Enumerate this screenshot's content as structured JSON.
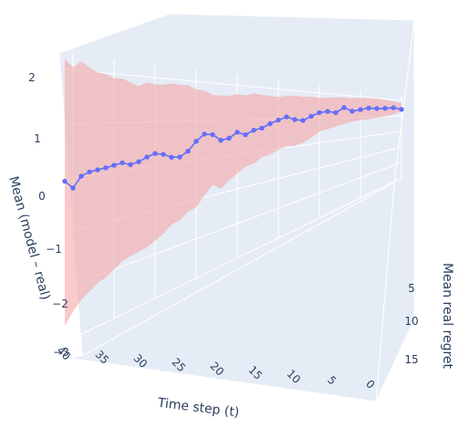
{
  "chart_data": {
    "type": "line",
    "projection": "3d",
    "xlabel": "Time step (t)",
    "ylabel": "Mean real regret",
    "zlabel": "Mean (model – real)",
    "x_ticks": [
      "0",
      "5",
      "10",
      "15",
      "20",
      "25",
      "30",
      "35",
      "40"
    ],
    "y_ticks": [
      "5",
      "10",
      "15"
    ],
    "z_ticks": [
      "−3",
      "−2",
      "−1",
      "0",
      "1",
      "2"
    ],
    "x_range": [
      0,
      41
    ],
    "z_range": [
      -3,
      2.3
    ],
    "colors": {
      "line": "#636efa",
      "band": "#f4a6a6",
      "pane": "#e5ecf6",
      "grid": "#ffffff",
      "text": "#2a3f5f"
    },
    "series": [
      {
        "type": "line",
        "x": [
          41,
          40,
          39,
          38,
          37,
          36,
          35,
          34,
          33,
          32,
          31,
          30,
          29,
          28,
          27,
          26,
          25,
          24,
          23,
          22,
          21,
          20,
          19,
          18,
          17,
          16,
          15,
          14,
          13,
          12,
          11,
          10,
          9,
          8,
          7,
          6,
          5,
          4,
          3,
          2,
          1,
          0
        ],
        "z": [
          -0.05,
          -0.2,
          0.0,
          0.06,
          0.08,
          0.1,
          0.13,
          0.16,
          0.1,
          0.14,
          0.22,
          0.28,
          0.24,
          0.15,
          0.13,
          0.25,
          0.48,
          0.65,
          0.62,
          0.45,
          0.49,
          0.64,
          0.55,
          0.67,
          0.72,
          0.85,
          0.96,
          1.06,
          0.96,
          0.92,
          1.07,
          1.21,
          1.26,
          1.21,
          1.44,
          1.28,
          1.36,
          1.45,
          1.44,
          1.46,
          1.51,
          1.43
        ]
      },
      {
        "type": "band",
        "x": [
          41,
          40,
          39,
          38,
          37,
          36,
          35,
          34,
          33,
          32,
          31,
          30,
          29,
          28,
          27,
          26,
          25,
          24,
          23,
          22,
          21,
          20,
          19,
          18,
          17,
          16,
          15,
          14,
          13,
          12,
          11,
          10,
          9,
          8,
          7,
          6,
          5,
          4,
          3,
          2,
          1,
          0
        ],
        "upper": [
          2.2,
          2.05,
          2.18,
          2.08,
          2.0,
          1.98,
          1.91,
          1.92,
          1.85,
          1.78,
          1.88,
          1.85,
          1.85,
          1.9,
          1.88,
          1.89,
          1.8,
          1.78,
          1.68,
          1.68,
          1.68,
          1.75,
          1.72,
          1.8,
          1.77,
          1.75,
          1.74,
          1.79,
          1.82,
          1.8,
          1.83,
          1.8,
          1.82,
          1.88,
          1.9,
          1.88,
          1.95,
          1.98,
          1.98,
          1.95,
          1.9,
          1.83
        ],
        "lower": [
          -2.7,
          -2.5,
          -2.35,
          -2.25,
          -2.15,
          -2.1,
          -2.0,
          -1.9,
          -1.85,
          -1.82,
          -1.78,
          -1.7,
          -1.6,
          -1.45,
          -1.4,
          -1.25,
          -1.2,
          -0.95,
          -0.72,
          -0.88,
          -0.7,
          -0.55,
          -0.4,
          -0.35,
          -0.2,
          -0.15,
          -0.05,
          0.05,
          0.02,
          0.1,
          0.25,
          0.45,
          0.52,
          0.62,
          0.7,
          0.8,
          0.84,
          0.86,
          0.95,
          1.0,
          1.12,
          1.3
        ]
      }
    ]
  }
}
